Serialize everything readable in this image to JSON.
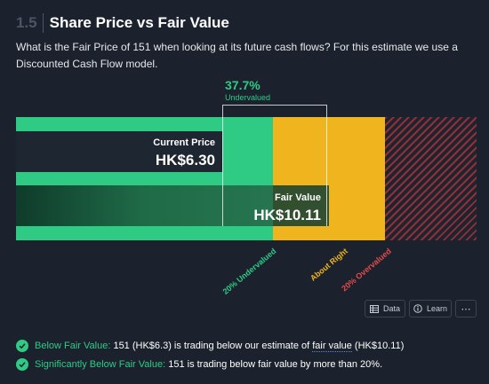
{
  "section": {
    "number": "1.5",
    "title": "Share Price vs Fair Value"
  },
  "description": "What is the Fair Price of 151 when looking at its future cash flows? For this estimate we use a Discounted Cash Flow model.",
  "chart": {
    "current_price_label": "Current Price",
    "current_price_value": "HK$6.30",
    "fair_value_label": "Fair Value",
    "fair_value_value": "HK$10.11",
    "discount_percent": "37.7%",
    "discount_label": "Undervalued",
    "zones": {
      "undervalued": "20% Undervalued",
      "about_right": "About Right",
      "overvalued": "20% Overvalued"
    },
    "colors": {
      "undervalued": "#2fcb84",
      "about_right": "#efb41e",
      "overvalued": "#e64a4a"
    }
  },
  "buttons": {
    "data": "Data",
    "learn": "Learn",
    "more": "⋯"
  },
  "bullets": [
    {
      "label": "Below Fair Value:",
      "pre": " 151 (HK$6.3) is trading below our estimate of ",
      "link": "fair value",
      "post": " (HK$10.11)"
    },
    {
      "label": "Significantly Below Fair Value:",
      "pre": " 151 is trading below fair value by more than 20%.",
      "link": "",
      "post": ""
    }
  ]
}
